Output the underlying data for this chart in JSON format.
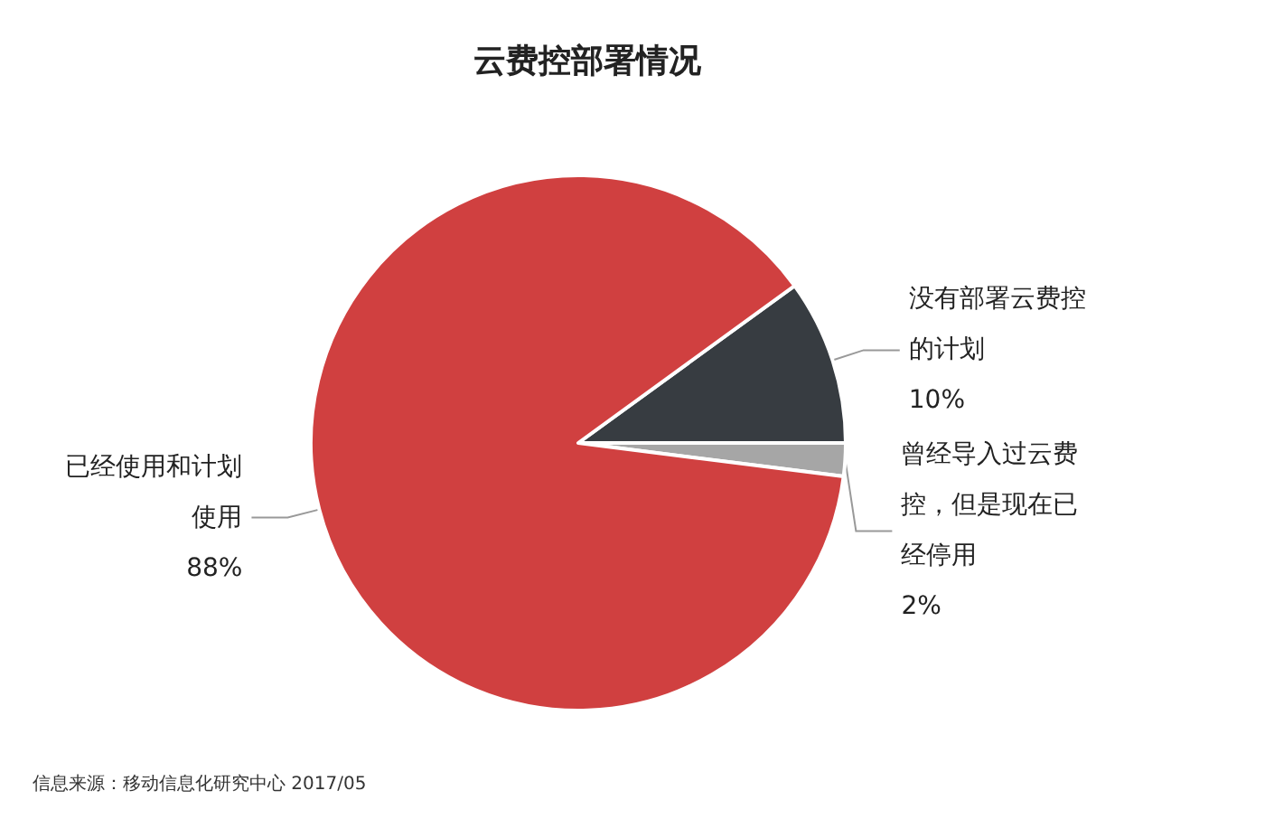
{
  "chart_data": {
    "type": "pie",
    "title": "云费控部署情况",
    "categories": [
      "没有部署云费控的计划",
      "曾经导入过云费控，但是现在已经停用",
      "已经使用和计划使用"
    ],
    "values": [
      10,
      2,
      88
    ],
    "colors": [
      "#373c41",
      "#a6a6a6",
      "#d04040"
    ],
    "value_labels": [
      "10%",
      "2%",
      "88%"
    ],
    "legend": false,
    "annotations": [
      "信息来源：移动信息化研究中心 2017/05"
    ]
  }
}
